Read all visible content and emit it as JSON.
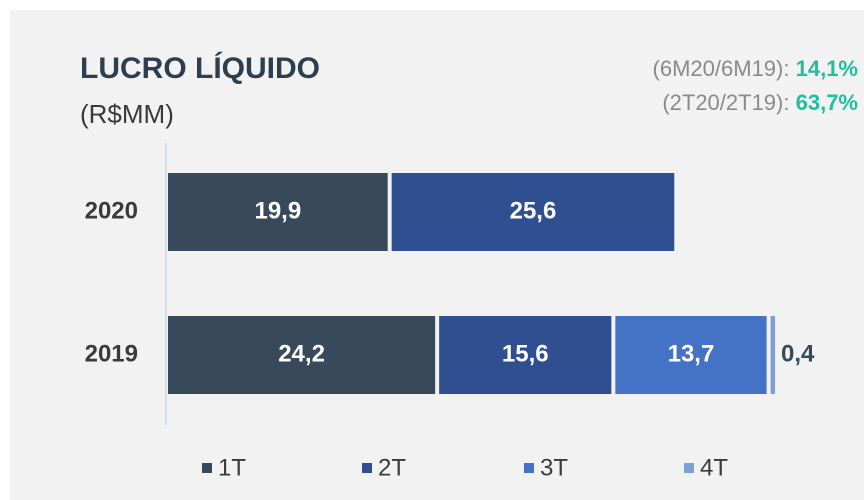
{
  "chart_data": {
    "type": "stacked-barh",
    "title": "LUCRO LÍQUIDO",
    "subtitle": "(R$MM)",
    "annotations": [
      {
        "label": "(6M20/6M19):",
        "value": "14,1%"
      },
      {
        "label": "(2T20/2T19):",
        "value": "63,7%"
      }
    ],
    "categories": [
      "2020",
      "2019"
    ],
    "series": [
      {
        "name": "1T",
        "color": "#37495a",
        "values": [
          19.9,
          24.2
        ],
        "value_labels": [
          "19,9",
          "24,2"
        ]
      },
      {
        "name": "2T",
        "color": "#2f4f91",
        "values": [
          25.6,
          15.6
        ],
        "value_labels": [
          "25,6",
          "15,6"
        ]
      },
      {
        "name": "3T",
        "color": "#4472c4",
        "values": [
          null,
          13.7
        ],
        "value_labels": [
          null,
          "13,7"
        ]
      },
      {
        "name": "4T",
        "color": "#7f9fd8",
        "values": [
          null,
          0.4
        ],
        "value_labels": [
          null,
          "0,4"
        ]
      }
    ],
    "legend": "bottom"
  }
}
